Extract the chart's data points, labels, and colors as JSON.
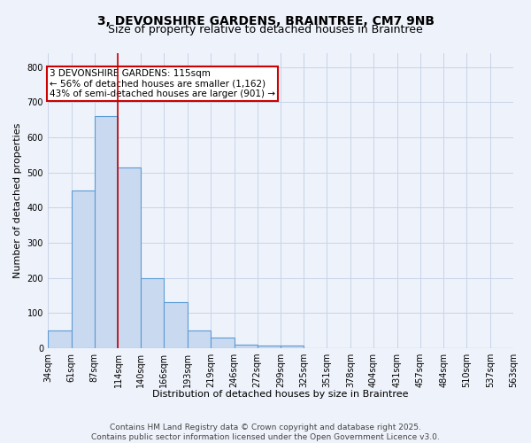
{
  "title_line1": "3, DEVONSHIRE GARDENS, BRAINTREE, CM7 9NB",
  "title_line2": "Size of property relative to detached houses in Braintree",
  "xlabel": "Distribution of detached houses by size in Braintree",
  "ylabel": "Number of detached properties",
  "bin_labels": [
    "34sqm",
    "61sqm",
    "87sqm",
    "114sqm",
    "140sqm",
    "166sqm",
    "193sqm",
    "219sqm",
    "246sqm",
    "272sqm",
    "299sqm",
    "325sqm",
    "351sqm",
    "378sqm",
    "404sqm",
    "431sqm",
    "457sqm",
    "484sqm",
    "510sqm",
    "537sqm",
    "563sqm"
  ],
  "bar_values": [
    50,
    450,
    660,
    515,
    200,
    130,
    50,
    30,
    10,
    8,
    8,
    0,
    0,
    0,
    0,
    0,
    0,
    0,
    0,
    0
  ],
  "bar_color": "#c9d9f0",
  "bar_edge_color": "#5b9bd5",
  "bar_edge_width": 0.8,
  "grid_color": "#c8d4e8",
  "background_color": "#eef2fa",
  "red_line_x": 114,
  "bin_edges_values": [
    34,
    61,
    87,
    114,
    140,
    166,
    193,
    219,
    246,
    272,
    299,
    325,
    351,
    378,
    404,
    431,
    457,
    484,
    510,
    537,
    563
  ],
  "ylim": [
    0,
    840
  ],
  "yticks": [
    0,
    100,
    200,
    300,
    400,
    500,
    600,
    700,
    800
  ],
  "annotation_text": "3 DEVONSHIRE GARDENS: 115sqm\n← 56% of detached houses are smaller (1,162)\n43% of semi-detached houses are larger (901) →",
  "annotation_box_color": "#ffffff",
  "annotation_box_edge_color": "#cc0000",
  "footer_line1": "Contains HM Land Registry data © Crown copyright and database right 2025.",
  "footer_line2": "Contains public sector information licensed under the Open Government Licence v3.0.",
  "title_fontsize": 10,
  "subtitle_fontsize": 9,
  "axis_label_fontsize": 8,
  "tick_fontsize": 7,
  "annotation_fontsize": 7.5,
  "footer_fontsize": 6.5
}
